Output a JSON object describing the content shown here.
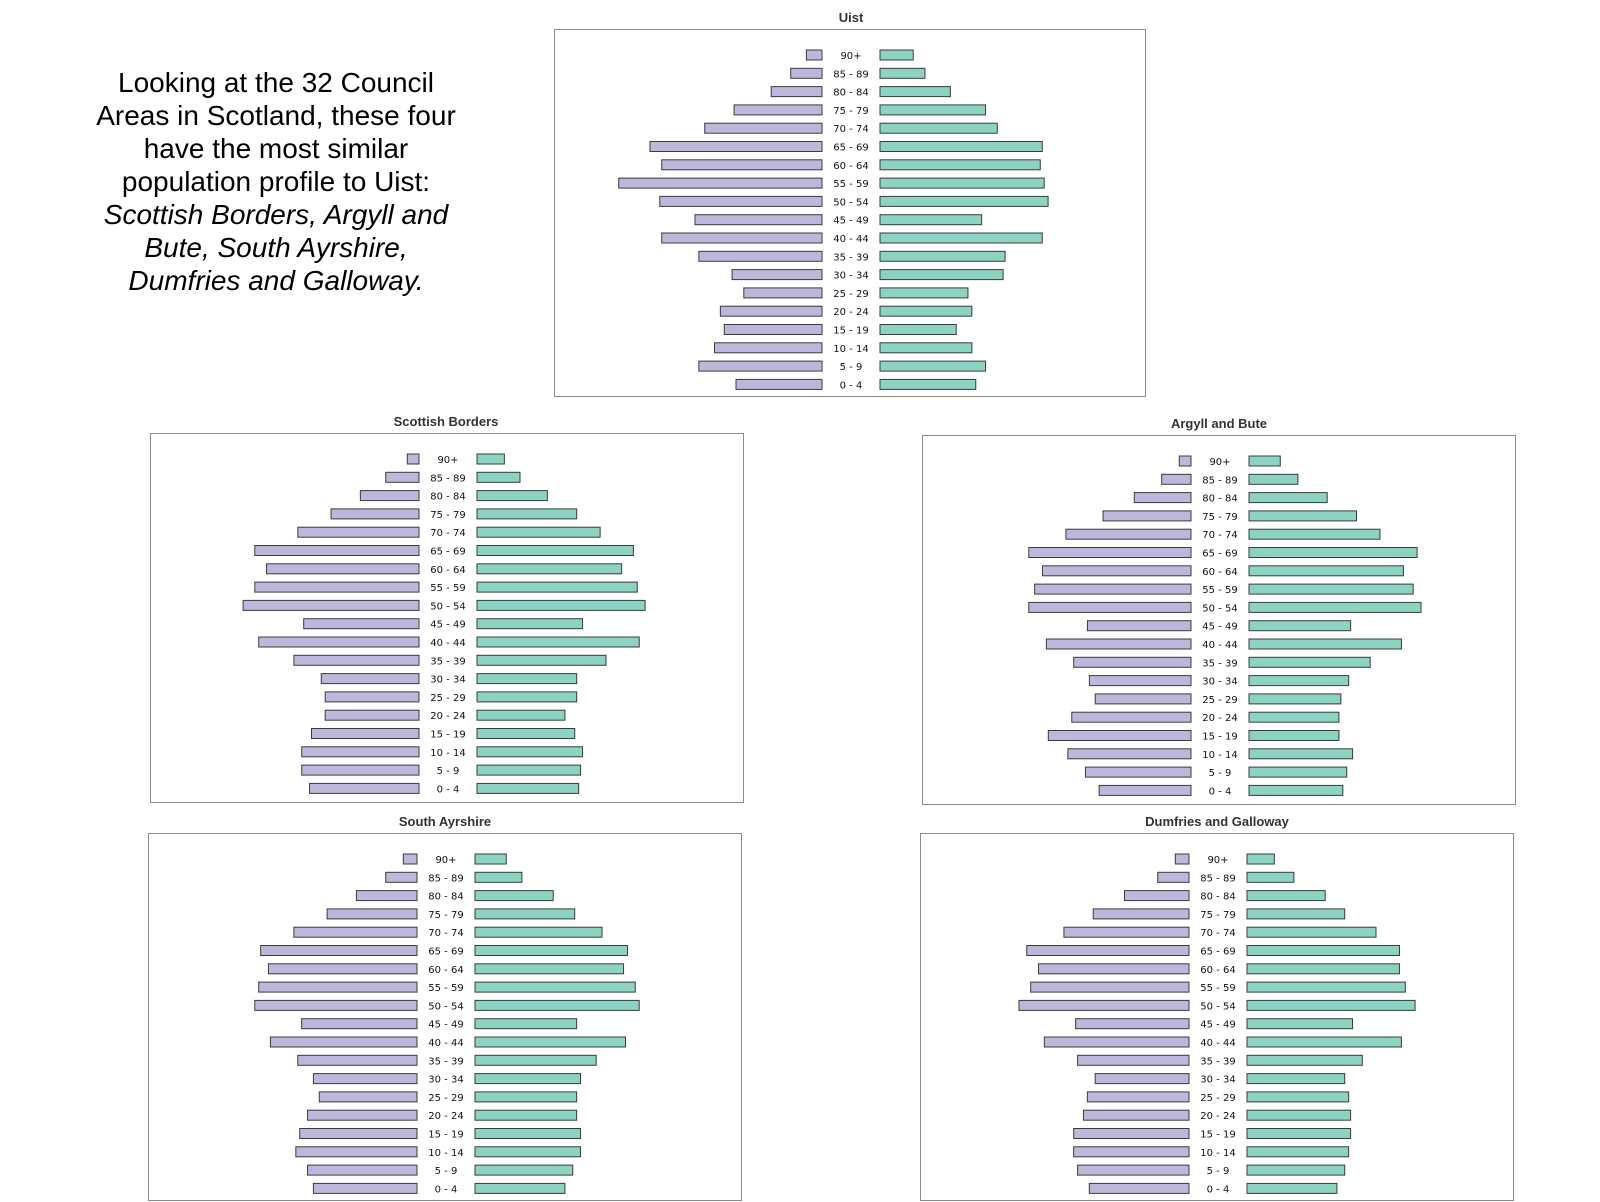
{
  "intro": {
    "line1": "Looking at the 32 Council Areas in Scotland, these four have the most similar population profile to Uist:",
    "line2": "Scottish Borders, Argyll and Bute, South Ayrshire, Dumfries and Galloway."
  },
  "colors": {
    "left_series": "#bdb7dc",
    "right_series": "#8cd3c2",
    "outline": "#3b3b3b"
  },
  "chart_data": [
    {
      "type": "bar",
      "title": "Uist",
      "categories": [
        "90+",
        "85 - 89",
        "80 - 84",
        "75 - 79",
        "70 - 74",
        "65 - 69",
        "60 - 64",
        "55 - 59",
        "50 - 54",
        "45 - 49",
        "40 - 44",
        "35 - 39",
        "30 - 34",
        "25 - 29",
        "20 - 24",
        "15 - 19",
        "10 - 14",
        "5 - 9",
        "0 - 4"
      ],
      "series": [
        {
          "values": [
            8,
            16,
            26,
            45,
            60,
            88,
            82,
            104,
            83,
            65,
            82,
            63,
            46,
            40,
            52,
            50,
            55,
            63,
            44
          ]
        },
        {
          "values": [
            17,
            23,
            36,
            54,
            60,
            83,
            82,
            84,
            86,
            52,
            83,
            64,
            63,
            45,
            47,
            39,
            47,
            54,
            49
          ]
        }
      ],
      "xlim": [
        0,
        110
      ]
    },
    {
      "type": "bar",
      "title": "Scottish Borders",
      "categories": [
        "90+",
        "85 - 89",
        "80 - 84",
        "75 - 79",
        "70 - 74",
        "65 - 69",
        "60 - 64",
        "55 - 59",
        "50 - 54",
        "45 - 49",
        "40 - 44",
        "35 - 39",
        "30 - 34",
        "25 - 29",
        "20 - 24",
        "15 - 19",
        "10 - 14",
        "5 - 9",
        "0 - 4"
      ],
      "series": [
        {
          "values": [
            6,
            17,
            30,
            45,
            62,
            84,
            78,
            84,
            90,
            59,
            82,
            64,
            50,
            48,
            48,
            55,
            60,
            60,
            56
          ]
        },
        {
          "values": [
            14,
            22,
            36,
            51,
            63,
            80,
            74,
            82,
            86,
            54,
            83,
            66,
            51,
            51,
            45,
            50,
            54,
            53,
            52
          ]
        }
      ],
      "xlim": [
        0,
        110
      ]
    },
    {
      "type": "bar",
      "title": "Argyll and Bute",
      "categories": [
        "90+",
        "85 - 89",
        "80 - 84",
        "75 - 79",
        "70 - 74",
        "65 - 69",
        "60 - 64",
        "55 - 59",
        "50 - 54",
        "45 - 49",
        "40 - 44",
        "35 - 39",
        "30 - 34",
        "25 - 29",
        "20 - 24",
        "15 - 19",
        "10 - 14",
        "5 - 9",
        "0 - 4"
      ],
      "series": [
        {
          "values": [
            6,
            15,
            29,
            45,
            64,
            83,
            76,
            80,
            83,
            53,
            74,
            60,
            52,
            49,
            61,
            73,
            63,
            54,
            47
          ]
        },
        {
          "values": [
            16,
            25,
            40,
            55,
            67,
            86,
            79,
            84,
            88,
            52,
            78,
            62,
            51,
            47,
            46,
            46,
            53,
            50,
            48
          ]
        }
      ],
      "xlim": [
        0,
        110
      ]
    },
    {
      "type": "bar",
      "title": "South Ayrshire",
      "categories": [
        "90+",
        "85 - 89",
        "80 - 84",
        "75 - 79",
        "70 - 74",
        "65 - 69",
        "60 - 64",
        "55 - 59",
        "50 - 54",
        "45 - 49",
        "40 - 44",
        "35 - 39",
        "30 - 34",
        "25 - 29",
        "20 - 24",
        "15 - 19",
        "10 - 14",
        "5 - 9",
        "0 - 4"
      ],
      "series": [
        {
          "values": [
            7,
            16,
            31,
            46,
            63,
            80,
            76,
            81,
            83,
            59,
            75,
            61,
            53,
            50,
            56,
            60,
            62,
            56,
            53
          ]
        },
        {
          "values": [
            16,
            24,
            40,
            51,
            65,
            78,
            76,
            82,
            84,
            52,
            77,
            62,
            54,
            52,
            52,
            54,
            54,
            50,
            46
          ]
        }
      ],
      "xlim": [
        0,
        110
      ]
    },
    {
      "type": "bar",
      "title": "Dumfries and Galloway",
      "categories": [
        "90+",
        "85 - 89",
        "80 - 84",
        "75 - 79",
        "70 - 74",
        "65 - 69",
        "60 - 64",
        "55 - 59",
        "50 - 54",
        "45 - 49",
        "40 - 44",
        "35 - 39",
        "30 - 34",
        "25 - 29",
        "20 - 24",
        "15 - 19",
        "10 - 14",
        "5 - 9",
        "0 - 4"
      ],
      "series": [
        {
          "values": [
            7,
            16,
            33,
            49,
            64,
            83,
            77,
            81,
            87,
            58,
            74,
            57,
            48,
            52,
            54,
            59,
            59,
            57,
            51
          ]
        },
        {
          "values": [
            14,
            24,
            40,
            50,
            66,
            78,
            78,
            81,
            86,
            54,
            79,
            59,
            50,
            52,
            53,
            53,
            52,
            50,
            46
          ]
        }
      ],
      "xlim": [
        0,
        110
      ]
    }
  ]
}
